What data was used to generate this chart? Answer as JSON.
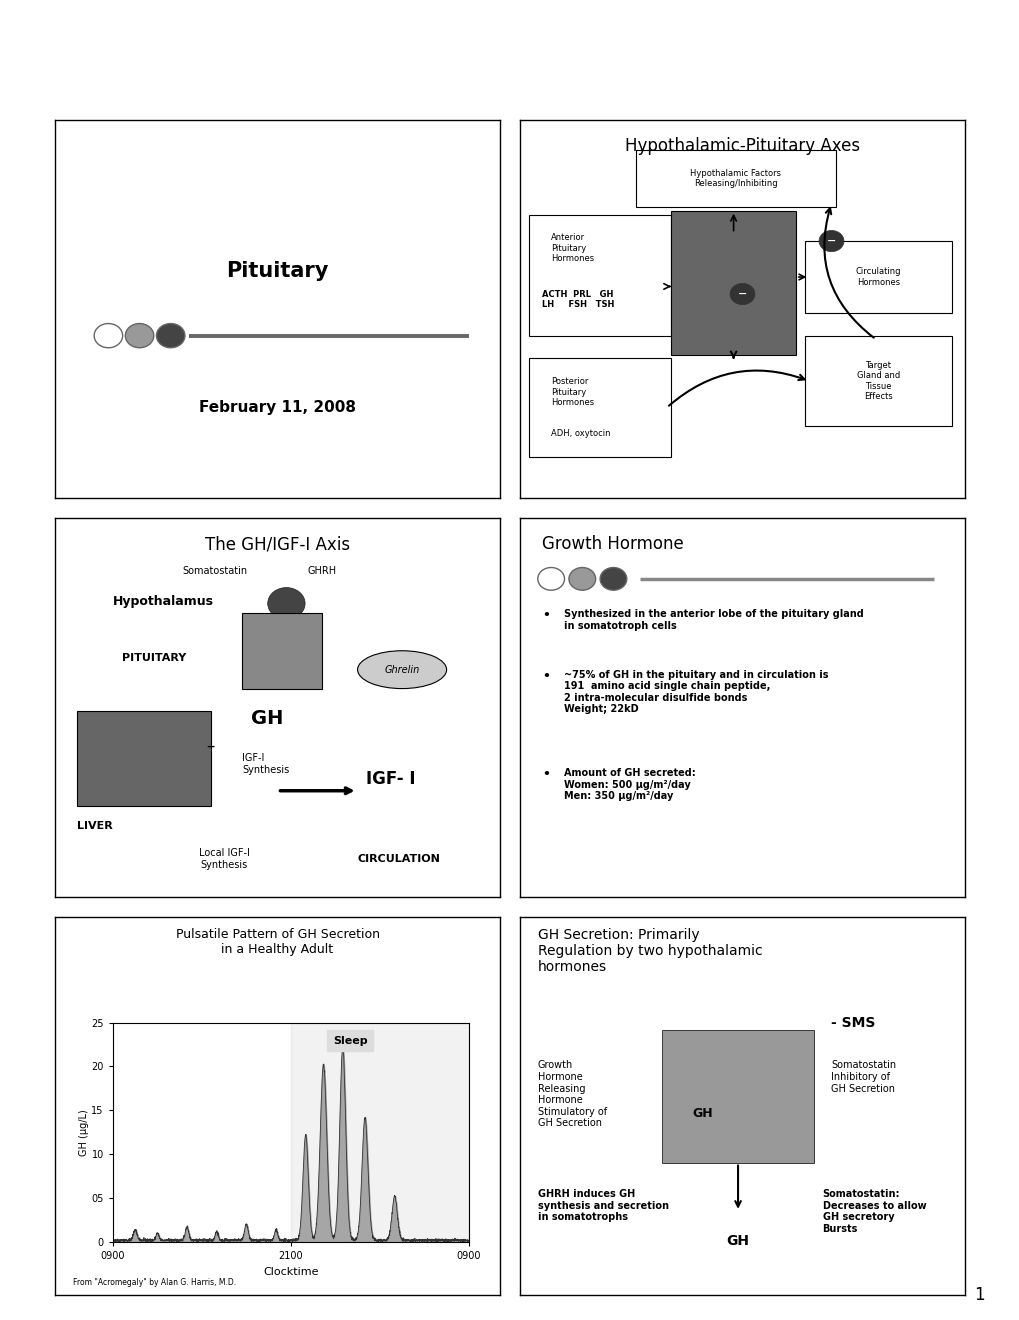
{
  "bg_color": "#ffffff",
  "page_number": "1",
  "panel1": {
    "title": "Pituitary",
    "date": "February 11, 2008",
    "circle_colors": [
      "#ffffff",
      "#999999",
      "#444444"
    ],
    "circle_edge": "#666666"
  },
  "panel2": {
    "title": "Hypothalamic-Pituitary Axes",
    "hypo_text": "Hypothalamic Factors\nReleasing/Inhibiting",
    "anterior_text1": "Anterior\nPituitary\nHormones",
    "anterior_text2": "ACTH  PRL   GH\nLH     FSH   TSH",
    "posterior_text1": "Posterior\nPituitary\nHormones",
    "posterior_text2": "ADH, oxytocin",
    "circulating_text": "Circulating\nHormones",
    "target_text": "Target\nGland and\nTissue\nEffects"
  },
  "panel3": {
    "title": "The GH/IGF-I Axis",
    "somatostatin": "Somatostatin",
    "ghrh": "GHRH",
    "hypothalamus": "Hypothalamus",
    "pituitary": "PITUITARY",
    "gh": "GH",
    "igf_synthesis": "IGF-I\nSynthesis",
    "liver": "LIVER",
    "local_igf": "Local IGF-I\nSynthesis",
    "igf_i": "IGF- I",
    "circulation": "CIRCULATION",
    "ghrelin": "Ghrelin"
  },
  "panel4": {
    "title": "Growth Hormone",
    "circle_colors": [
      "#ffffff",
      "#999999",
      "#444444"
    ],
    "circle_edge": "#666666",
    "bullet1": "Synthesized in the anterior lobe of the pituitary gland\n    in somatotroph cells",
    "bullet2": "~75% of GH in the pituitary and in circulation is\n    191  amino acid single chain peptide,\n    2 intra-molecular disulfide bonds\n    Weight; 22kD",
    "bullet3": "Amount of GH secreted:\n    Women: 500 μg/m²/day\n    Men: 350 μg/m²/day"
  },
  "panel5": {
    "title": "Pulsatile Pattern of GH Secretion\nin a Healthy Adult",
    "sleep_label": "Sleep",
    "xlabel": "Clocktime",
    "ylabel": "GH (μg/L)",
    "xtick_labels": [
      "0900",
      "2100",
      "0900"
    ],
    "ytick_labels": [
      "0",
      "05",
      "10",
      "15",
      "20",
      "25"
    ],
    "ytick_vals": [
      0,
      5,
      10,
      15,
      20,
      25
    ],
    "caption": "From \"Acromegaly\" by Alan G. Harris, M.D."
  },
  "panel6": {
    "title": "GH Secretion: Primarily\nRegulation by two hypothalamic\nhormones",
    "left_top": "Growth\nHormone\nReleasing\nHormone\nStimulatory of\nGH Secretion",
    "center_gh": "GH",
    "right_sms": "- SMS",
    "right_soma": "Somatostatin\nInhibitory of\nGH Secretion",
    "left_bottom": "GHRH induces GH\nsynthesis and secretion\nin somatotrophs",
    "right_bottom": "Somatostatin:\nDecreases to allow\nGH secretory\nBursts",
    "bottom_gh": "GH"
  }
}
